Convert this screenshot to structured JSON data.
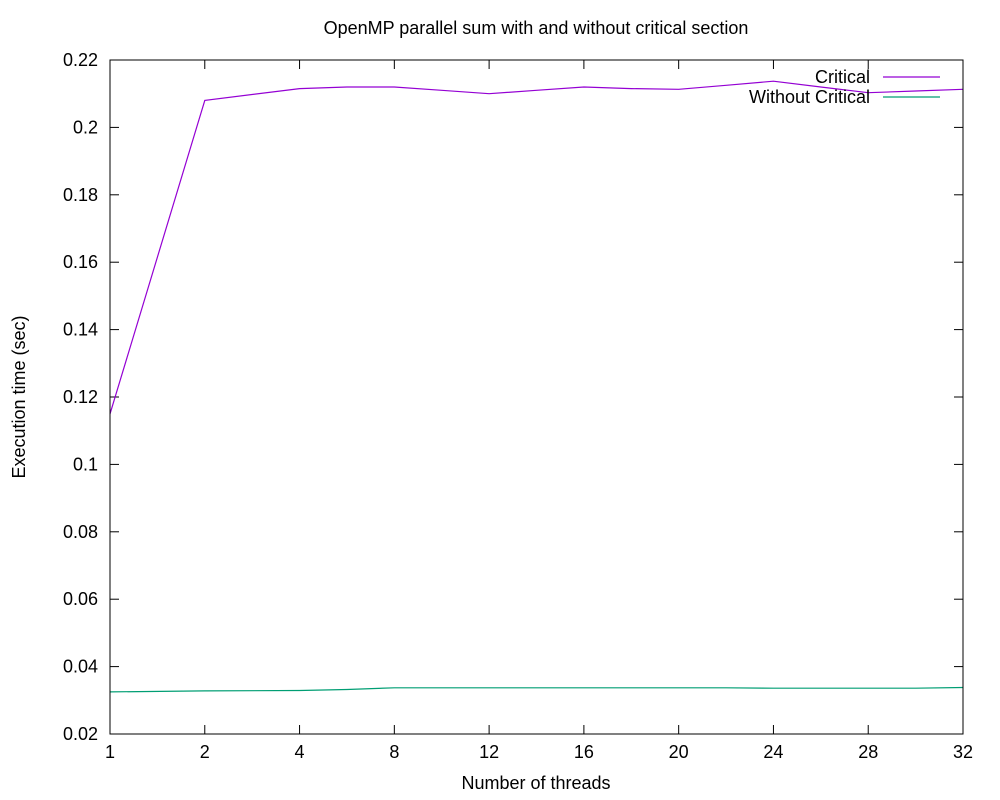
{
  "chart_data": {
    "type": "line",
    "title": "OpenMP parallel sum with and without critical section",
    "xlabel": "Number of threads",
    "ylabel": "Execution time (sec)",
    "x": [
      1,
      2,
      4,
      6,
      8,
      10,
      12,
      14,
      16,
      18,
      20,
      22,
      24,
      26,
      28,
      30,
      32
    ],
    "x_tick_labels": [
      "1",
      "2",
      "4",
      "8",
      "12",
      "16",
      "20",
      "24",
      "28",
      "32"
    ],
    "y_tick_labels": [
      "0.02",
      "0.04",
      "0.06",
      "0.08",
      "0.1",
      "0.12",
      "0.14",
      "0.16",
      "0.18",
      "0.2",
      "0.22"
    ],
    "y_ticks": [
      0.02,
      0.04,
      0.06,
      0.08,
      0.1,
      0.12,
      0.14,
      0.16,
      0.18,
      0.2,
      0.22
    ],
    "ylim": [
      0.02,
      0.22
    ],
    "grid": false,
    "legend_position": "top-right",
    "series": [
      {
        "name": "Critical",
        "color": "#9400d3",
        "values": [
          0.115,
          0.208,
          0.2115,
          0.212,
          0.212,
          0.211,
          0.21,
          0.211,
          0.212,
          0.2115,
          0.2113,
          0.2125,
          0.2137,
          0.212,
          0.2103,
          0.2108,
          0.2113
        ]
      },
      {
        "name": "Without Critical",
        "color": "#009e73",
        "values": [
          0.0325,
          0.0328,
          0.0329,
          0.0332,
          0.0337,
          0.0337,
          0.0337,
          0.0337,
          0.0337,
          0.0337,
          0.0337,
          0.0337,
          0.0336,
          0.0336,
          0.0336,
          0.0336,
          0.0338
        ]
      }
    ]
  }
}
